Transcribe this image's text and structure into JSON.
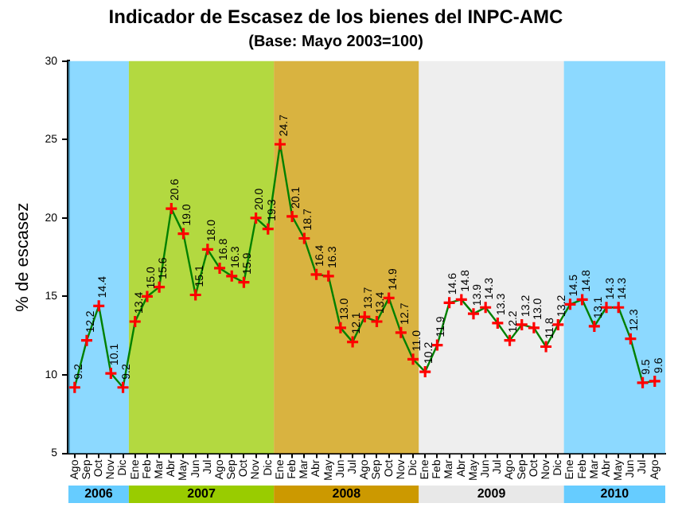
{
  "chart_data": {
    "type": "line",
    "title": "Indicador de Escasez de los bienes del INPC-AMC",
    "subtitle": "(Base: Mayo 2003=100)",
    "ylabel": "% de escasez",
    "x": [
      "2006-08",
      "2006-09",
      "2006-10",
      "2006-11",
      "2006-12",
      "2007-01",
      "2007-02",
      "2007-03",
      "2007-04",
      "2007-05",
      "2007-06",
      "2007-07",
      "2007-08",
      "2007-09",
      "2007-10",
      "2007-11",
      "2007-12",
      "2008-01",
      "2008-02",
      "2008-03",
      "2008-04",
      "2008-05",
      "2008-06",
      "2008-07",
      "2008-08",
      "2008-09",
      "2008-10",
      "2008-11",
      "2008-12",
      "2009-01",
      "2009-02",
      "2009-03",
      "2009-04",
      "2009-05",
      "2009-06",
      "2009-07",
      "2009-08",
      "2009-09",
      "2009-10",
      "2009-11",
      "2009-12",
      "2010-01",
      "2010-02",
      "2010-03",
      "2010-04",
      "2010-05",
      "2010-06",
      "2010-07",
      "2010-08"
    ],
    "series": [
      {
        "color": "#008000",
        "values": [
          9.2,
          12.2,
          14.4,
          10.1,
          9.2,
          13.4,
          15.0,
          15.6,
          20.6,
          19.0,
          15.1,
          18.0,
          16.8,
          16.3,
          15.9,
          20.0,
          19.3,
          24.7,
          20.1,
          18.7,
          16.4,
          16.3,
          13.0,
          12.1,
          13.7,
          13.4,
          14.9,
          12.7,
          11.0,
          10.2,
          11.9,
          14.6,
          14.8,
          13.9,
          14.3,
          13.3,
          12.2,
          13.2,
          13.0,
          11.8,
          13.2,
          14.5,
          14.8,
          13.1,
          14.3,
          14.3,
          12.3,
          9.5,
          9.6
        ],
        "value_labels": [
          "9.2",
          "12.2",
          "14.4",
          "10.1",
          "9.2",
          "13.4",
          "15.0",
          "15.6",
          "20.6",
          "19.0",
          "15.1",
          "18.0",
          "16.8",
          "16.3",
          "15.9",
          "20.0",
          "19.3",
          "24.7",
          "20.1",
          "18.7",
          "16.4",
          "16.3",
          "13.0",
          "12.1",
          "13.7",
          "13.4",
          "14.9",
          "12.7",
          "11.0",
          "10.2",
          "11.9",
          "14.6",
          "14.8",
          "13.9",
          "14.3",
          "13.3",
          "12.2",
          "13.2",
          "13.0",
          "11.8",
          "13.2",
          "14.5",
          "14.8",
          "13.1",
          "14.3",
          "14.3",
          "12.3",
          "9.5",
          "9.6"
        ]
      }
    ],
    "marker": "cross",
    "line_style": "solid",
    "grid": false,
    "legend": false,
    "ylim": [
      5,
      30
    ],
    "yticks": [
      5,
      10,
      15,
      20,
      25,
      30
    ],
    "xlim": [
      "2006-07-16",
      "2010-08-28"
    ],
    "xticks": [
      {
        "value": "2006-08",
        "label": "Ago"
      },
      {
        "value": "2006-09",
        "label": "Sep"
      },
      {
        "value": "2006-10",
        "label": "Oct"
      },
      {
        "value": "2006-11",
        "label": "Nov"
      },
      {
        "value": "2006-12",
        "label": "Dic"
      },
      {
        "value": "2007-01",
        "label": "Ene"
      },
      {
        "value": "2007-02",
        "label": "Feb"
      },
      {
        "value": "2007-03",
        "label": "Mar"
      },
      {
        "value": "2007-04",
        "label": "Abr"
      },
      {
        "value": "2007-05",
        "label": "May"
      },
      {
        "value": "2007-06",
        "label": "Jun"
      },
      {
        "value": "2007-07",
        "label": "Jul"
      },
      {
        "value": "2007-08",
        "label": "Ago"
      },
      {
        "value": "2007-09",
        "label": "Sep"
      },
      {
        "value": "2007-10",
        "label": "Oct"
      },
      {
        "value": "2007-11",
        "label": "Nov"
      },
      {
        "value": "2007-12",
        "label": "Dic"
      },
      {
        "value": "2008-01",
        "label": "Ene"
      },
      {
        "value": "2008-02",
        "label": "Feb"
      },
      {
        "value": "2008-03",
        "label": "Mar"
      },
      {
        "value": "2008-04",
        "label": "Abr"
      },
      {
        "value": "2008-05",
        "label": "May"
      },
      {
        "value": "2008-06",
        "label": "Jun"
      },
      {
        "value": "2008-07",
        "label": "Jul"
      },
      {
        "value": "2008-08",
        "label": "Ago"
      },
      {
        "value": "2008-09",
        "label": "Sep"
      },
      {
        "value": "2008-10",
        "label": "Oct"
      },
      {
        "value": "2008-11",
        "label": "Nov"
      },
      {
        "value": "2008-12",
        "label": "Dic"
      },
      {
        "value": "2009-01",
        "label": "Ene"
      },
      {
        "value": "2009-02",
        "label": "Feb"
      },
      {
        "value": "2009-03",
        "label": "Mar"
      },
      {
        "value": "2009-04",
        "label": "Abr"
      },
      {
        "value": "2009-05",
        "label": "May"
      },
      {
        "value": "2009-06",
        "label": "Jun"
      },
      {
        "value": "2009-07",
        "label": "Jul"
      },
      {
        "value": "2009-08",
        "label": "Ago"
      },
      {
        "value": "2009-09",
        "label": "Sep"
      },
      {
        "value": "2009-10",
        "label": "Oct"
      },
      {
        "value": "2009-11",
        "label": "Nov"
      },
      {
        "value": "2009-12",
        "label": "Dic"
      },
      {
        "value": "2010-01",
        "label": "Ene"
      },
      {
        "value": "2010-02",
        "label": "Feb"
      },
      {
        "value": "2010-03",
        "label": "Mar"
      },
      {
        "value": "2010-04",
        "label": "Abr"
      },
      {
        "value": "2010-05",
        "label": "May"
      },
      {
        "value": "2010-06",
        "label": "Jun"
      },
      {
        "value": "2010-07",
        "label": "Jul"
      },
      {
        "value": "2010-08",
        "label": "Ago"
      }
    ],
    "bands": [
      {
        "axis": "x",
        "from": "2006-07-16",
        "to": "2006-12-16",
        "label": "2006",
        "color": "#66ccff"
      },
      {
        "axis": "x",
        "from": "2006-12-16",
        "to": "2007-12-16",
        "label": "2007",
        "color": "#99cc00"
      },
      {
        "axis": "x",
        "from": "2007-12-16",
        "to": "2008-12-16",
        "label": "2008",
        "color": "#cc9900"
      },
      {
        "axis": "x",
        "from": "2008-12-16",
        "to": "2009-12-16",
        "label": "2009",
        "color": "#e8e8e8"
      },
      {
        "axis": "x",
        "from": "2009-12-16",
        "to": "2010-08-28",
        "label": "2010",
        "color": "#66ccff"
      }
    ]
  }
}
